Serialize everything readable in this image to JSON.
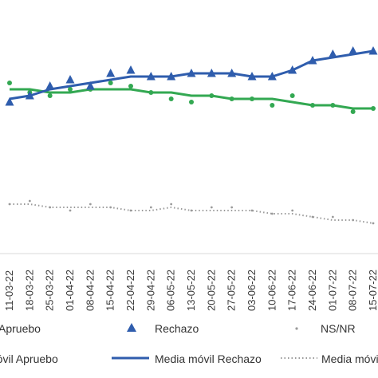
{
  "chart_data": {
    "type": "line",
    "x": [
      "11-03-22",
      "18-03-22",
      "25-03-22",
      "01-04-22",
      "08-04-22",
      "15-04-22",
      "22-04-22",
      "29-04-22",
      "06-05-22",
      "13-05-22",
      "20-05-22",
      "27-05-22",
      "03-06-22",
      "10-06-22",
      "17-06-22",
      "24-06-22",
      "01-07-22",
      "08-07-22",
      "15-07-22"
    ],
    "y_axis_visible": false,
    "gridlines": false,
    "legend_position": "bottom",
    "series": [
      {
        "name": "Apruebo",
        "marker": "dot",
        "color": "#33a852",
        "values": [
          48,
          45,
          44,
          46,
          46,
          48,
          47,
          45,
          43,
          42,
          44,
          43,
          43,
          41,
          44,
          41,
          41,
          39,
          40
        ]
      },
      {
        "name": "Rechazo",
        "marker": "triangle",
        "color": "#2f5dad",
        "values": [
          42,
          44,
          47,
          49,
          47,
          51,
          52,
          50,
          50,
          51,
          51,
          51,
          50,
          50,
          52,
          55,
          57,
          58,
          58
        ]
      },
      {
        "name": "NS/NR",
        "marker": "small-dot",
        "color": "#9a9a9a",
        "values": [
          10,
          11,
          9,
          8,
          10,
          9,
          8,
          9,
          10,
          8,
          9,
          9,
          8,
          7,
          8,
          6,
          6,
          5,
          4
        ]
      },
      {
        "name": "Media móvil Apruebo",
        "line": "solid",
        "color": "#33a852",
        "values": [
          46,
          46,
          45,
          45,
          46,
          46,
          46,
          45,
          45,
          44,
          44,
          43,
          43,
          43,
          42,
          41,
          41,
          40,
          40
        ]
      },
      {
        "name": "Media móvil Rechazo",
        "line": "solid",
        "color": "#2f5dad",
        "values": [
          43,
          44,
          46,
          47,
          48,
          49,
          50,
          50,
          50,
          51,
          51,
          51,
          50,
          50,
          52,
          55,
          56,
          57,
          58
        ]
      },
      {
        "name": "Media móvil NS/NR",
        "line": "dotted",
        "color": "#9a9a9a",
        "values": [
          10,
          10,
          9,
          9,
          9,
          9,
          8,
          8,
          9,
          8,
          8,
          8,
          8,
          7,
          7,
          6,
          5,
          5,
          4
        ]
      }
    ]
  },
  "legend": {
    "items": [
      "Apruebo",
      "Rechazo",
      "NS/NR",
      "Media móvil Apruebo",
      "Media móvil Rechazo",
      "Media móvil NS/NR"
    ]
  }
}
